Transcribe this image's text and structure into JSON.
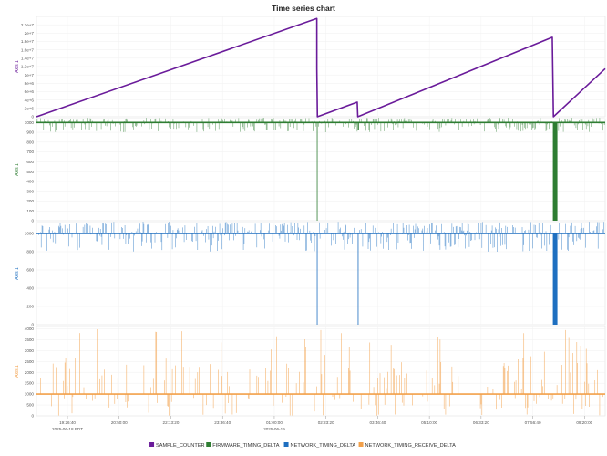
{
  "chart_data": {
    "type": "line",
    "title": "Time series chart",
    "x_ticks": [
      "19:26:40",
      "20:50:00",
      "22:13:20",
      "23:36:40",
      "01:00:00",
      "02:23:20",
      "03:46:40",
      "05:10:00",
      "06:33:20",
      "07:56:40",
      "09:20:00"
    ],
    "x_subticks": [
      "2025-06-18 PDT",
      "2025-06-19"
    ],
    "legend_position": "bottom",
    "grid": true,
    "panels": [
      {
        "series": "SAMPLE_COUNTER",
        "ylabel": "Axis 1",
        "color": "#6a1b9a",
        "ylim": [
          0,
          24000000
        ],
        "yticks": [
          "0",
          "2e+6",
          "4e+6",
          "6e+6",
          "8e+6",
          "1e+7",
          "1.2e+7",
          "1.4e+7",
          "1.6e+7",
          "1.8e+7",
          "2e+7",
          "2.2e+7"
        ],
        "ytick_values": [
          0,
          2000000,
          4000000,
          6000000,
          8000000,
          10000000,
          12000000,
          14000000,
          16000000,
          18000000,
          20000000,
          22000000
        ],
        "points": [
          [
            0,
            0
          ],
          [
            0.493,
            23500000
          ],
          [
            0.493,
            11500000
          ],
          [
            0.494,
            0
          ],
          [
            0.564,
            3500000
          ],
          [
            0.565,
            0
          ],
          [
            0.907,
            19000000
          ],
          [
            0.909,
            0
          ],
          [
            1,
            11500000
          ]
        ]
      },
      {
        "series": "FIRMWARE_TIMING_DELTA",
        "ylabel": "Axis 1",
        "color": "#2e7d32",
        "ylim": [
          0,
          1040
        ],
        "yticks": [
          "0",
          "100",
          "200",
          "300",
          "400",
          "500",
          "600",
          "700",
          "800",
          "900",
          "1000"
        ],
        "ytick_values": [
          0,
          100,
          200,
          300,
          400,
          500,
          600,
          700,
          800,
          900,
          1000
        ],
        "baseline": 1000,
        "noise_up": 50,
        "noise_down": 100,
        "drops": [
          [
            0.493,
            0.494
          ],
          [
            0.908,
            0.916
          ]
        ],
        "dips": [
          [
            0.565,
            0.567
          ]
        ]
      },
      {
        "series": "NETWORK_TIMING_DELTA",
        "ylabel": "Axis 1",
        "color": "#1e6fc0",
        "ylim": [
          0,
          1120
        ],
        "yticks": [
          "0",
          "200",
          "400",
          "600",
          "800",
          "1000"
        ],
        "ytick_values": [
          0,
          200,
          400,
          600,
          800,
          1000
        ],
        "baseline": 1000,
        "noise_up": 130,
        "noise_down": 200,
        "drops": [
          [
            0.493,
            0.494
          ],
          [
            0.565,
            0.566
          ],
          [
            0.908,
            0.916
          ]
        ],
        "dips": []
      },
      {
        "series": "NETWORK_TIMING_RECEIVE_DELTA",
        "ylabel": "Axis 1",
        "color": "#f2a04a",
        "ylim": [
          0,
          4100
        ],
        "yticks": [
          "0",
          "500",
          "1000",
          "1500",
          "2000",
          "2500",
          "3000",
          "3500",
          "4000"
        ],
        "ytick_values": [
          0,
          500,
          1000,
          1500,
          2000,
          2500,
          3000,
          3500,
          4000
        ],
        "baseline": 1000,
        "spike_max": 4000,
        "drops": [],
        "dips": []
      }
    ],
    "legend": [
      "SAMPLE_COUNTER",
      "FIRMWARE_TIMING_DELTA",
      "NETWORK_TIMING_DELTA",
      "NETWORK_TIMING_RECEIVE_DELTA"
    ]
  }
}
